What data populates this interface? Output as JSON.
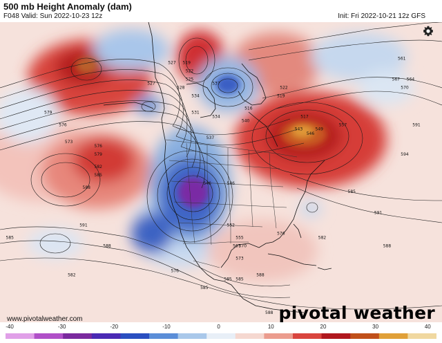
{
  "header": {
    "title": "500 mb Height Anomaly (dam)",
    "subtitle": "F048 Valid: Sun 2022-10-23 12z",
    "init": "Init: Fri 2022-10-21 12z GFS"
  },
  "footer": {
    "url": "www.pivotalweather.com",
    "brand": "pivotal weather"
  },
  "icons": {
    "settings": "gear-icon"
  },
  "colorbar": {
    "ticks": [
      "-40",
      "-30",
      "-20",
      "-10",
      "0",
      "10",
      "20",
      "30",
      "40"
    ],
    "min": -40,
    "max": 40,
    "colors": [
      "#e0a0e8",
      "#b050c8",
      "#7a2a9e",
      "#4a2ab4",
      "#2a4fc0",
      "#5b8ed8",
      "#a9c8ea",
      "#e8eff7",
      "#f5d8d0",
      "#eb9c8e",
      "#d9453e",
      "#b0181e",
      "#c0501a",
      "#e0a038",
      "#f0d8a0"
    ]
  },
  "map": {
    "contour_labels": [
      {
        "text": "579",
        "lon": -165,
        "lat": 50
      },
      {
        "text": "576",
        "lon": -160,
        "lat": 47
      },
      {
        "text": "573",
        "lon": -158,
        "lat": 43
      },
      {
        "text": "576",
        "lon": -148,
        "lat": 42
      },
      {
        "text": "579",
        "lon": -148,
        "lat": 40
      },
      {
        "text": "582",
        "lon": -148,
        "lat": 37
      },
      {
        "text": "585",
        "lon": -148,
        "lat": 35
      },
      {
        "text": "588",
        "lon": -152,
        "lat": 32
      },
      {
        "text": "591",
        "lon": -153,
        "lat": 23
      },
      {
        "text": "588",
        "lon": -145,
        "lat": 18
      },
      {
        "text": "585",
        "lon": -178,
        "lat": 20
      },
      {
        "text": "582",
        "lon": -157,
        "lat": 11
      },
      {
        "text": "576",
        "lon": -122,
        "lat": 12
      },
      {
        "text": "585",
        "lon": -112,
        "lat": 8
      },
      {
        "text": "585",
        "lon": -100,
        "lat": 10
      },
      {
        "text": "588",
        "lon": -90,
        "lat": 2
      },
      {
        "text": "519",
        "lon": -118,
        "lat": 62
      },
      {
        "text": "522",
        "lon": -117,
        "lat": 60
      },
      {
        "text": "525",
        "lon": -117,
        "lat": 58
      },
      {
        "text": "528",
        "lon": -120,
        "lat": 56
      },
      {
        "text": "534",
        "lon": -115,
        "lat": 54
      },
      {
        "text": "531",
        "lon": -115,
        "lat": 50
      },
      {
        "text": "537",
        "lon": -108,
        "lat": 57
      },
      {
        "text": "534",
        "lon": -108,
        "lat": 49
      },
      {
        "text": "537",
        "lon": -110,
        "lat": 44
      },
      {
        "text": "540",
        "lon": -98,
        "lat": 48
      },
      {
        "text": "546",
        "lon": -111,
        "lat": 33
      },
      {
        "text": "546",
        "lon": -103,
        "lat": 33
      },
      {
        "text": "552",
        "lon": -103,
        "lat": 23
      },
      {
        "text": "555",
        "lon": -100,
        "lat": 20
      },
      {
        "text": "567",
        "lon": -101,
        "lat": 18
      },
      {
        "text": "570",
        "lon": -99,
        "lat": 18
      },
      {
        "text": "573",
        "lon": -100,
        "lat": 15
      },
      {
        "text": "576",
        "lon": -86,
        "lat": 21
      },
      {
        "text": "588",
        "lon": -93,
        "lat": 11
      },
      {
        "text": "585",
        "lon": -104,
        "lat": 10
      },
      {
        "text": "516",
        "lon": -97,
        "lat": 51
      },
      {
        "text": "522",
        "lon": -85,
        "lat": 56
      },
      {
        "text": "519",
        "lon": -86,
        "lat": 54
      },
      {
        "text": "543",
        "lon": -80,
        "lat": 46
      },
      {
        "text": "546",
        "lon": -76,
        "lat": 45
      },
      {
        "text": "549",
        "lon": -73,
        "lat": 46
      },
      {
        "text": "517",
        "lon": -78,
        "lat": 49
      },
      {
        "text": "557",
        "lon": -65,
        "lat": 47
      },
      {
        "text": "591",
        "lon": -40,
        "lat": 47
      },
      {
        "text": "594",
        "lon": -44,
        "lat": 40
      },
      {
        "text": "591",
        "lon": -53,
        "lat": 26
      },
      {
        "text": "588",
        "lon": -50,
        "lat": 18
      },
      {
        "text": "585",
        "lon": -62,
        "lat": 31
      },
      {
        "text": "582",
        "lon": -72,
        "lat": 20
      },
      {
        "text": "561",
        "lon": -45,
        "lat": 63
      },
      {
        "text": "567",
        "lon": -47,
        "lat": 58
      },
      {
        "text": "564",
        "lon": -42,
        "lat": 58
      },
      {
        "text": "570",
        "lon": -44,
        "lat": 56
      },
      {
        "text": "527",
        "lon": -123,
        "lat": 62
      },
      {
        "text": "527",
        "lon": -130,
        "lat": 57
      }
    ]
  }
}
